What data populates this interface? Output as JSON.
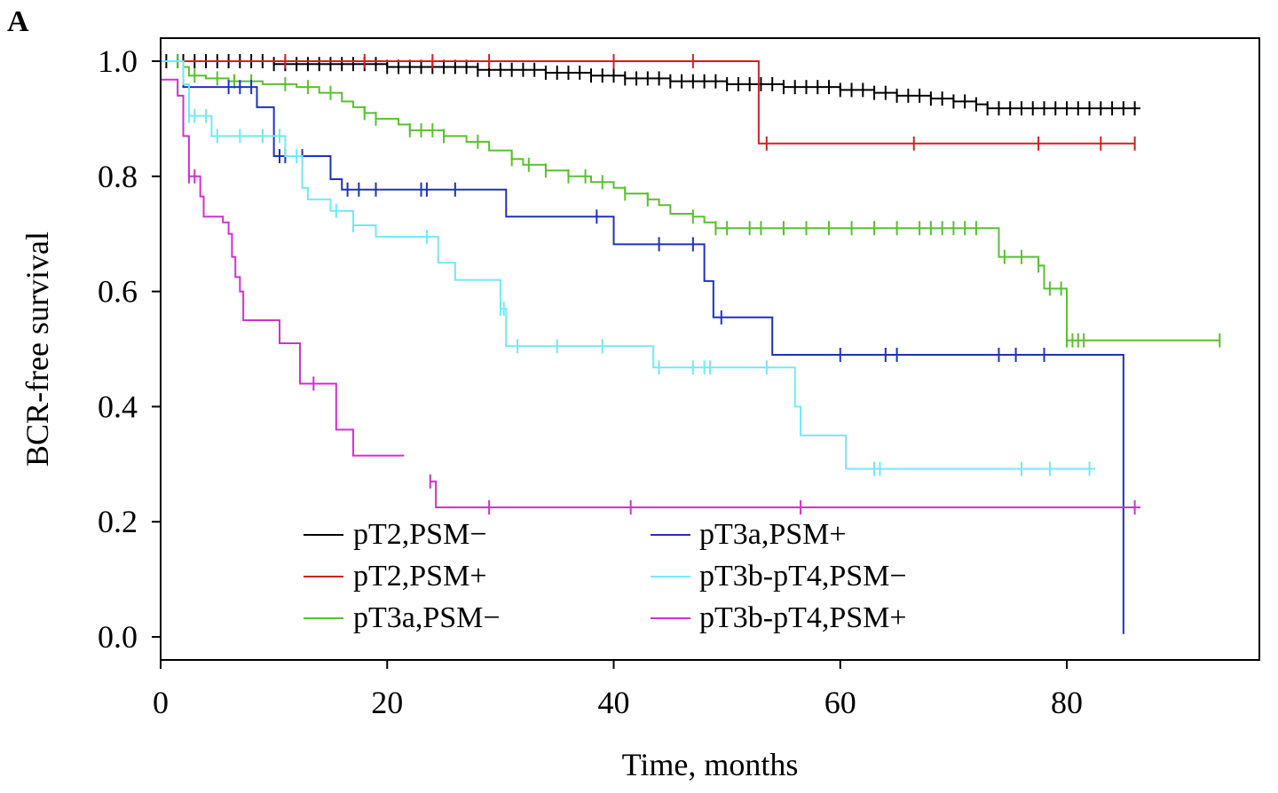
{
  "panel_label": "A",
  "chart_data": {
    "type": "line",
    "subtype": "kaplan-meier",
    "title": "",
    "xlabel": "Time, months",
    "ylabel": "BCR-free survival",
    "xlim": [
      0,
      97
    ],
    "ylim": [
      -0.04,
      1.04
    ],
    "xticks": [
      0,
      20,
      40,
      60,
      80
    ],
    "xtick_labels": [
      "0",
      "20",
      "40",
      "60",
      "80"
    ],
    "yticks": [
      0.0,
      0.2,
      0.4,
      0.6,
      0.8,
      1.0
    ],
    "ytick_labels": [
      "0.0",
      "0.2",
      "0.4",
      "0.6",
      "0.8",
      "1.0"
    ],
    "grid": false,
    "legend_position": "bottom-left",
    "series": [
      {
        "name": "pT2,PSM−",
        "color": "#000000",
        "steps": [
          [
            0,
            1.0
          ],
          [
            10,
            0.995
          ],
          [
            20,
            0.99
          ],
          [
            28,
            0.985
          ],
          [
            34,
            0.98
          ],
          [
            38,
            0.975
          ],
          [
            41,
            0.97
          ],
          [
            45,
            0.965
          ],
          [
            50,
            0.96
          ],
          [
            55,
            0.955
          ],
          [
            60,
            0.95
          ],
          [
            63,
            0.945
          ],
          [
            65,
            0.94
          ],
          [
            68,
            0.935
          ],
          [
            70,
            0.93
          ],
          [
            72,
            0.925
          ],
          [
            73,
            0.918
          ]
        ],
        "end": 86.5,
        "censors": [
          0.5,
          1.5,
          2,
          3,
          4,
          5,
          6,
          7,
          8,
          9,
          10,
          11,
          12,
          13,
          14,
          15,
          16,
          17,
          18,
          19,
          20,
          21,
          22,
          23,
          24,
          25,
          26,
          27,
          28,
          29,
          30,
          31,
          32,
          33,
          34,
          35,
          36,
          37,
          38,
          39,
          40,
          41,
          42,
          43,
          44,
          45,
          46,
          47,
          48,
          49,
          50,
          51,
          52,
          53,
          54,
          55,
          56,
          57,
          58,
          59,
          60,
          61,
          62,
          63,
          64,
          65,
          66,
          67,
          68,
          69,
          70,
          71,
          72,
          73,
          74,
          75,
          76,
          77,
          78,
          79,
          80,
          81,
          82,
          83,
          84,
          85,
          86
        ]
      },
      {
        "name": "pT2,PSM+",
        "color": "#d02020",
        "steps": [
          [
            0,
            1.0
          ],
          [
            52.8,
            0.857
          ]
        ],
        "end": 86,
        "censors": [
          11,
          18,
          24,
          29,
          40,
          47,
          53.5,
          66.5,
          77.5,
          83,
          86
        ]
      },
      {
        "name": "pT3a,PSM−",
        "color": "#58c030",
        "steps": [
          [
            0,
            1.0
          ],
          [
            2,
            0.99
          ],
          [
            2.5,
            0.975
          ],
          [
            4,
            0.97
          ],
          [
            6,
            0.965
          ],
          [
            9,
            0.96
          ],
          [
            12,
            0.955
          ],
          [
            14,
            0.945
          ],
          [
            16,
            0.93
          ],
          [
            17,
            0.92
          ],
          [
            18,
            0.91
          ],
          [
            19,
            0.9
          ],
          [
            21,
            0.89
          ],
          [
            22,
            0.88
          ],
          [
            25,
            0.87
          ],
          [
            27,
            0.86
          ],
          [
            29,
            0.845
          ],
          [
            31,
            0.83
          ],
          [
            32,
            0.82
          ],
          [
            34,
            0.81
          ],
          [
            36,
            0.8
          ],
          [
            38,
            0.79
          ],
          [
            40,
            0.78
          ],
          [
            41,
            0.77
          ],
          [
            43,
            0.76
          ],
          [
            44,
            0.75
          ],
          [
            45,
            0.735
          ],
          [
            47,
            0.73
          ],
          [
            48,
            0.72
          ],
          [
            49,
            0.71
          ],
          [
            74,
            0.66
          ],
          [
            77.5,
            0.645
          ],
          [
            78,
            0.605
          ],
          [
            80,
            0.515
          ]
        ],
        "end": 93.5,
        "censors": [
          1.5,
          3,
          5,
          6.5,
          8,
          11,
          13,
          15,
          18,
          19,
          22,
          23,
          24,
          25,
          28,
          31,
          32.5,
          34,
          36,
          37.5,
          39,
          41,
          43,
          47,
          49,
          50,
          52,
          53,
          55,
          57,
          59,
          61,
          63,
          65,
          67,
          68,
          69,
          70,
          71,
          72,
          74.5,
          76,
          77.5,
          78.5,
          79.5,
          80,
          80.5,
          81,
          81.5,
          93.5
        ]
      },
      {
        "name": "pT3a,PSM+",
        "color": "#2030c0",
        "steps": [
          [
            0,
            1.0
          ],
          [
            2,
            0.955
          ],
          [
            8.5,
            0.92
          ],
          [
            10,
            0.835
          ],
          [
            15,
            0.795
          ],
          [
            16,
            0.777
          ],
          [
            30.5,
            0.73
          ],
          [
            40,
            0.682
          ],
          [
            48,
            0.618
          ],
          [
            48.8,
            0.555
          ],
          [
            54,
            0.49
          ],
          [
            85,
            0.005
          ]
        ],
        "end": 85,
        "censors": [
          6,
          7,
          8,
          10.5,
          11,
          12.5,
          16.5,
          17.5,
          19,
          23,
          23.5,
          26,
          38.5,
          44,
          47,
          49.5,
          60,
          64,
          65,
          74,
          75.5,
          78
        ]
      },
      {
        "name": "pT3b-pT4,PSM−",
        "color": "#70eaf5",
        "steps": [
          [
            0,
            1.0
          ],
          [
            2,
            0.96
          ],
          [
            2.5,
            0.905
          ],
          [
            4.5,
            0.87
          ],
          [
            11,
            0.835
          ],
          [
            12.5,
            0.78
          ],
          [
            13,
            0.76
          ],
          [
            15,
            0.74
          ],
          [
            17,
            0.715
          ],
          [
            19,
            0.695
          ],
          [
            24.5,
            0.65
          ],
          [
            26,
            0.62
          ],
          [
            30,
            0.57
          ],
          [
            30.5,
            0.505
          ],
          [
            43.5,
            0.468
          ],
          [
            56,
            0.4
          ],
          [
            56.5,
            0.35
          ],
          [
            60.5,
            0.292
          ]
        ],
        "end": 82.5,
        "censors": [
          2.5,
          3,
          4,
          5,
          7,
          9,
          10.5,
          12,
          15.5,
          17,
          23.5,
          30,
          30.3,
          31.5,
          35,
          39,
          44,
          47,
          48,
          48.5,
          53.5,
          63,
          63.5,
          76,
          78.5,
          82
        ]
      },
      {
        "name": "pT3b-pT4,PSM+",
        "color": "#d030d0",
        "steps": [
          [
            0,
            0.968
          ],
          [
            1.5,
            0.94
          ],
          [
            2,
            0.87
          ],
          [
            2.5,
            0.8
          ],
          [
            3.5,
            0.765
          ],
          [
            3.8,
            0.73
          ],
          [
            5.5,
            0.72
          ],
          [
            6,
            0.7
          ],
          [
            6.3,
            0.66
          ],
          [
            6.6,
            0.625
          ],
          [
            7,
            0.6
          ],
          [
            7.3,
            0.55
          ],
          [
            10.5,
            0.51
          ],
          [
            12.3,
            0.44
          ],
          [
            15.5,
            0.36
          ],
          [
            17,
            0.315
          ]
        ],
        "end": 21.5,
        "steps2": [
          [
            23.8,
            0.27
          ],
          [
            24.3,
            0.225
          ]
        ],
        "end2": 86.5,
        "censors": [
          2.5,
          3,
          13.5,
          23.8,
          29,
          41.5,
          56.5,
          86
        ]
      }
    ]
  }
}
